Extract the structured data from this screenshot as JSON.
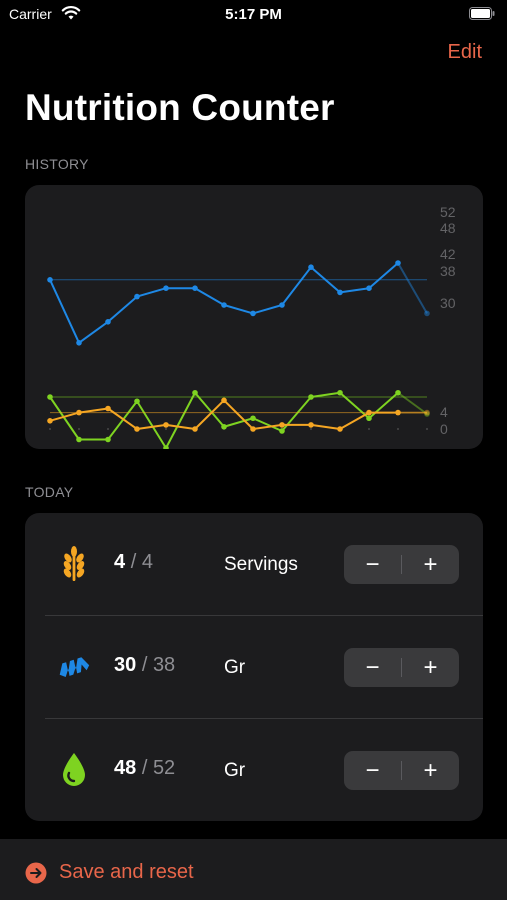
{
  "status_bar": {
    "carrier": "Carrier",
    "time": "5:17 PM"
  },
  "nav": {
    "edit_label": "Edit"
  },
  "title": "Nutrition Counter",
  "history": {
    "label": "HISTORY",
    "chart_data": {
      "type": "line",
      "series": [
        {
          "color": "#7ed321",
          "values": [
            52,
            42,
            42,
            51,
            40,
            53,
            45,
            47,
            44,
            52,
            53,
            47,
            53,
            48
          ],
          "goal": 52,
          "axis_labels": [
            "52",
            "48"
          ]
        },
        {
          "color": "#1e88e5",
          "values": [
            38,
            23,
            28,
            34,
            36,
            36,
            32,
            30,
            32,
            41,
            35,
            36,
            42,
            30
          ],
          "goal": 38,
          "axis_labels": [
            "42",
            "38",
            "30"
          ]
        },
        {
          "color": "#f5a623",
          "values": [
            2,
            4,
            5,
            0,
            1,
            0,
            7,
            0,
            1,
            1,
            0,
            4,
            4,
            4
          ],
          "goal": 4,
          "axis_labels": [
            "4",
            "0"
          ]
        }
      ]
    }
  },
  "today": {
    "label": "TODAY",
    "rows": [
      {
        "icon": "wheat-icon",
        "current": "4",
        "sep": "/",
        "goal": "4",
        "unit": "Servings",
        "minus": "−",
        "plus": "+"
      },
      {
        "icon": "protein-icon",
        "current": "30",
        "sep": "/",
        "goal": "38",
        "unit": "Gr",
        "minus": "−",
        "plus": "+"
      },
      {
        "icon": "drop-icon",
        "current": "48",
        "sep": "/",
        "goal": "52",
        "unit": "Gr",
        "minus": "−",
        "plus": "+"
      }
    ]
  },
  "footer": {
    "save_label": "Save and reset"
  },
  "colors": {
    "accent": "#e8664a",
    "green": "#7ed321",
    "blue": "#1e88e5",
    "orange": "#f5a623"
  }
}
